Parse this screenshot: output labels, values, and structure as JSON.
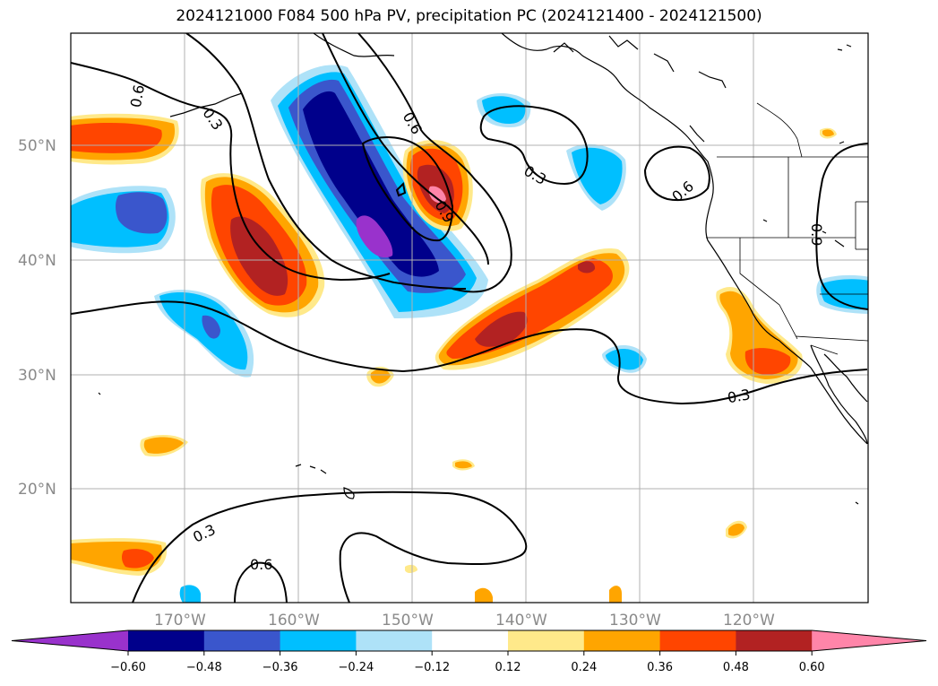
{
  "title": "2024121000 F084 500 hPa PV, precipitation PC (2024121400 - 2024121500)",
  "map": {
    "lat_labels": [
      "50°N",
      "40°N",
      "30°N",
      "20°N"
    ],
    "lon_labels": [
      "170°W",
      "160°W",
      "150°W",
      "140°W",
      "130°W",
      "120°W"
    ],
    "gridlines": true,
    "contour_labels": [
      "0.6",
      "0.3",
      "0.6",
      "0.3",
      "0.9",
      "0.6",
      "0.9",
      "0.3",
      "0.3",
      "0.6"
    ]
  },
  "colorbar": {
    "ticks": [
      "−0.60",
      "−0.48",
      "−0.36",
      "−0.24",
      "−0.12",
      "0.12",
      "0.24",
      "0.36",
      "0.48",
      "0.60"
    ],
    "colors": [
      "#9932cc",
      "#00008b",
      "#3a56cc",
      "#00bfff",
      "#aee2f8",
      "#ffffff",
      "#ffe98a",
      "#ffa500",
      "#ff4500",
      "#b22222",
      "#ff85a9"
    ]
  }
}
